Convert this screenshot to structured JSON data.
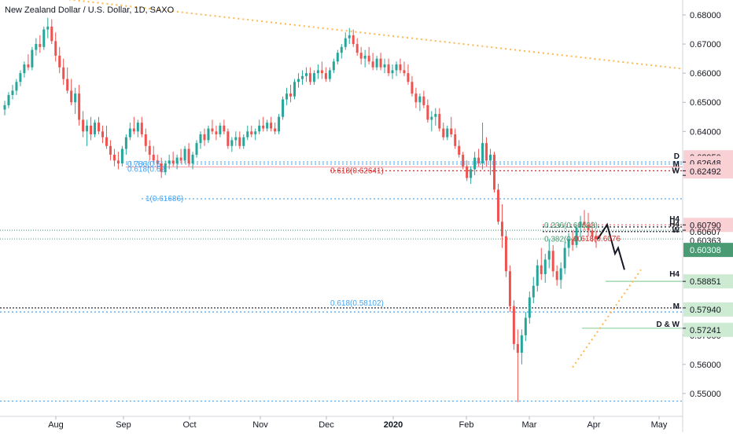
{
  "header": {
    "title": "New Zealand Dollar / U.S. Dollar, 1D, SAXO"
  },
  "chart_data": {
    "type": "candlestick",
    "symbol": "NZDUSD",
    "interval": "1D",
    "source": "SAXO",
    "x_ticks": [
      "Aug",
      "Sep",
      "Oct",
      "Nov",
      "Dec",
      "2020",
      "Feb",
      "Mar",
      "Apr",
      "May"
    ],
    "y_ticks": [
      "0.68000",
      "0.67000",
      "0.66000",
      "0.65000",
      "0.64000",
      "0.57000",
      "0.56000",
      "0.55000"
    ],
    "ylim": [
      0.546,
      0.685
    ],
    "price_labels": [
      {
        "value": "0.62950",
        "highlight": "#f9d0d4"
      },
      {
        "value": "0.62648",
        "highlight": "#f9d0d4"
      },
      {
        "value": "0.62492",
        "highlight": "#f9d0d4"
      },
      {
        "value": "0.60790",
        "highlight": "#f9d0d4"
      },
      {
        "value": "0.60607",
        "highlight": "none"
      },
      {
        "value": "0.60363",
        "highlight": "none"
      },
      {
        "value": "0.60308",
        "highlight": "#4a9b74"
      },
      {
        "value": "0.58851",
        "highlight": "#cdebd3"
      },
      {
        "value": "0.57940",
        "highlight": "#cdebd3"
      },
      {
        "value": "0.57241",
        "highlight": "#cdebd3"
      }
    ],
    "level_tags": [
      "D",
      "M",
      "W",
      "H4",
      "H4",
      "W",
      "H4",
      "M",
      "D & W"
    ],
    "fib_labels": [
      {
        "text": "0.618(0.62641)",
        "color": "#d32f2f"
      },
      {
        "text": "1(0.61686)",
        "color": "#42a5f5"
      },
      {
        "text": "0.618(0.58102)",
        "color": "#42a5f5"
      },
      {
        "text": "0.236(0.60633)",
        "color": "#4a9b74"
      },
      {
        "text": "0.382(0.60",
        "color": "#4a9b74"
      },
      {
        "text": "0.786(0.6",
        "color": "#42a5f5"
      },
      {
        "text": "0.618(0.62",
        "color": "#42a5f5"
      },
      {
        "text": "0.618(0.6076",
        "color": "#d32f2f"
      }
    ],
    "colors": {
      "up": "#26a69a",
      "down": "#ef5350",
      "wick": "#5a5a5a",
      "current_price": "#4a9b74",
      "trendline": "#ffb74d",
      "fib_blue": "#42a5f5",
      "fib_red": "#d32f2f"
    },
    "candles": [
      [
        0.6475,
        0.6505,
        0.6455,
        0.649
      ],
      [
        0.649,
        0.6535,
        0.648,
        0.6525
      ],
      [
        0.6525,
        0.656,
        0.651,
        0.654
      ],
      [
        0.654,
        0.658,
        0.6525,
        0.657
      ],
      [
        0.657,
        0.661,
        0.6555,
        0.66
      ],
      [
        0.66,
        0.664,
        0.6585,
        0.663
      ],
      [
        0.663,
        0.6665,
        0.661,
        0.662
      ],
      [
        0.662,
        0.669,
        0.661,
        0.668
      ],
      [
        0.668,
        0.672,
        0.666,
        0.67
      ],
      [
        0.67,
        0.673,
        0.667,
        0.669
      ],
      [
        0.669,
        0.676,
        0.668,
        0.675
      ],
      [
        0.675,
        0.679,
        0.672,
        0.676
      ],
      [
        0.676,
        0.6785,
        0.67,
        0.671
      ],
      [
        0.671,
        0.674,
        0.664,
        0.666
      ],
      [
        0.666,
        0.669,
        0.66,
        0.662
      ],
      [
        0.662,
        0.665,
        0.656,
        0.658
      ],
      [
        0.658,
        0.662,
        0.653,
        0.654
      ],
      [
        0.654,
        0.658,
        0.649,
        0.65
      ],
      [
        0.65,
        0.655,
        0.646,
        0.653
      ],
      [
        0.653,
        0.656,
        0.642,
        0.644
      ],
      [
        0.644,
        0.647,
        0.638,
        0.64
      ],
      [
        0.64,
        0.644,
        0.635,
        0.642
      ],
      [
        0.642,
        0.645,
        0.637,
        0.639
      ],
      [
        0.639,
        0.644,
        0.638,
        0.643
      ],
      [
        0.643,
        0.645,
        0.639,
        0.64
      ],
      [
        0.64,
        0.642,
        0.636,
        0.638
      ],
      [
        0.638,
        0.642,
        0.634,
        0.635
      ],
      [
        0.635,
        0.637,
        0.63,
        0.632
      ],
      [
        0.632,
        0.634,
        0.628,
        0.63
      ],
      [
        0.63,
        0.633,
        0.627,
        0.629
      ],
      [
        0.629,
        0.635,
        0.628,
        0.634
      ],
      [
        0.634,
        0.639,
        0.632,
        0.638
      ],
      [
        0.638,
        0.643,
        0.637,
        0.641
      ],
      [
        0.641,
        0.645,
        0.639,
        0.64
      ],
      [
        0.64,
        0.644,
        0.638,
        0.643
      ],
      [
        0.643,
        0.645,
        0.638,
        0.639
      ],
      [
        0.639,
        0.641,
        0.633,
        0.635
      ],
      [
        0.635,
        0.637,
        0.63,
        0.632
      ],
      [
        0.632,
        0.635,
        0.629,
        0.63
      ],
      [
        0.63,
        0.632,
        0.627,
        0.629
      ],
      [
        0.629,
        0.631,
        0.624,
        0.626
      ],
      [
        0.626,
        0.63,
        0.625,
        0.629
      ],
      [
        0.629,
        0.632,
        0.627,
        0.63
      ],
      [
        0.63,
        0.633,
        0.628,
        0.629
      ],
      [
        0.629,
        0.632,
        0.627,
        0.631
      ],
      [
        0.631,
        0.634,
        0.629,
        0.63
      ],
      [
        0.63,
        0.635,
        0.629,
        0.634
      ],
      [
        0.634,
        0.636,
        0.628,
        0.629
      ],
      [
        0.629,
        0.633,
        0.627,
        0.632
      ],
      [
        0.632,
        0.637,
        0.631,
        0.636
      ],
      [
        0.636,
        0.64,
        0.634,
        0.639
      ],
      [
        0.639,
        0.641,
        0.635,
        0.637
      ],
      [
        0.637,
        0.642,
        0.636,
        0.641
      ],
      [
        0.641,
        0.644,
        0.639,
        0.64
      ],
      [
        0.64,
        0.642,
        0.637,
        0.639
      ],
      [
        0.639,
        0.643,
        0.638,
        0.642
      ],
      [
        0.642,
        0.644,
        0.639,
        0.64
      ],
      [
        0.64,
        0.641,
        0.634,
        0.635
      ],
      [
        0.635,
        0.638,
        0.633,
        0.637
      ],
      [
        0.637,
        0.64,
        0.635,
        0.638
      ],
      [
        0.638,
        0.64,
        0.634,
        0.635
      ],
      [
        0.635,
        0.639,
        0.634,
        0.638
      ],
      [
        0.638,
        0.642,
        0.637,
        0.64
      ],
      [
        0.64,
        0.642,
        0.638,
        0.639
      ],
      [
        0.639,
        0.641,
        0.637,
        0.64
      ],
      [
        0.64,
        0.644,
        0.639,
        0.642
      ],
      [
        0.642,
        0.645,
        0.64,
        0.641
      ],
      [
        0.641,
        0.644,
        0.64,
        0.643
      ],
      [
        0.643,
        0.645,
        0.64,
        0.641
      ],
      [
        0.641,
        0.643,
        0.639,
        0.64
      ],
      [
        0.64,
        0.646,
        0.639,
        0.645
      ],
      [
        0.645,
        0.652,
        0.644,
        0.651
      ],
      [
        0.651,
        0.655,
        0.649,
        0.653
      ],
      [
        0.653,
        0.656,
        0.65,
        0.652
      ],
      [
        0.652,
        0.658,
        0.651,
        0.657
      ],
      [
        0.657,
        0.66,
        0.655,
        0.658
      ],
      [
        0.658,
        0.661,
        0.656,
        0.659
      ],
      [
        0.659,
        0.662,
        0.657,
        0.66
      ],
      [
        0.66,
        0.662,
        0.656,
        0.657
      ],
      [
        0.657,
        0.661,
        0.656,
        0.66
      ],
      [
        0.66,
        0.663,
        0.658,
        0.661
      ],
      [
        0.661,
        0.664,
        0.658,
        0.66
      ],
      [
        0.66,
        0.662,
        0.657,
        0.658
      ],
      [
        0.658,
        0.662,
        0.657,
        0.661
      ],
      [
        0.661,
        0.665,
        0.66,
        0.664
      ],
      [
        0.664,
        0.668,
        0.663,
        0.667
      ],
      [
        0.667,
        0.67,
        0.665,
        0.669
      ],
      [
        0.669,
        0.674,
        0.668,
        0.672
      ],
      [
        0.672,
        0.6755,
        0.67,
        0.673
      ],
      [
        0.673,
        0.675,
        0.669,
        0.67
      ],
      [
        0.67,
        0.672,
        0.666,
        0.667
      ],
      [
        0.667,
        0.669,
        0.663,
        0.665
      ],
      [
        0.665,
        0.668,
        0.662,
        0.666
      ],
      [
        0.666,
        0.669,
        0.663,
        0.664
      ],
      [
        0.664,
        0.667,
        0.661,
        0.662
      ],
      [
        0.662,
        0.666,
        0.661,
        0.665
      ],
      [
        0.665,
        0.667,
        0.661,
        0.662
      ],
      [
        0.662,
        0.665,
        0.66,
        0.663
      ],
      [
        0.663,
        0.665,
        0.659,
        0.66
      ],
      [
        0.66,
        0.663,
        0.658,
        0.661
      ],
      [
        0.661,
        0.664,
        0.659,
        0.663
      ],
      [
        0.663,
        0.665,
        0.66,
        0.661
      ],
      [
        0.661,
        0.664,
        0.659,
        0.66
      ],
      [
        0.66,
        0.663,
        0.656,
        0.657
      ],
      [
        0.657,
        0.659,
        0.652,
        0.653
      ],
      [
        0.653,
        0.655,
        0.648,
        0.65
      ],
      [
        0.65,
        0.653,
        0.647,
        0.652
      ],
      [
        0.652,
        0.654,
        0.648,
        0.649
      ],
      [
        0.649,
        0.651,
        0.643,
        0.644
      ],
      [
        0.644,
        0.647,
        0.64,
        0.645
      ],
      [
        0.645,
        0.648,
        0.642,
        0.646
      ],
      [
        0.646,
        0.648,
        0.64,
        0.641
      ],
      [
        0.641,
        0.643,
        0.637,
        0.638
      ],
      [
        0.638,
        0.642,
        0.637,
        0.641
      ],
      [
        0.641,
        0.645,
        0.638,
        0.639
      ],
      [
        0.639,
        0.641,
        0.634,
        0.635
      ],
      [
        0.635,
        0.637,
        0.631,
        0.632
      ],
      [
        0.632,
        0.633,
        0.627,
        0.628
      ],
      [
        0.628,
        0.63,
        0.623,
        0.624
      ],
      [
        0.624,
        0.628,
        0.622,
        0.627
      ],
      [
        0.627,
        0.633,
        0.625,
        0.631
      ],
      [
        0.631,
        0.634,
        0.628,
        0.629
      ],
      [
        0.629,
        0.643,
        0.627,
        0.636
      ],
      [
        0.636,
        0.638,
        0.628,
        0.63
      ],
      [
        0.63,
        0.634,
        0.625,
        0.632
      ],
      [
        0.632,
        0.633,
        0.619,
        0.62
      ],
      [
        0.62,
        0.622,
        0.608,
        0.609
      ],
      [
        0.609,
        0.615,
        0.6,
        0.604
      ],
      [
        0.604,
        0.606,
        0.59,
        0.592
      ],
      [
        0.592,
        0.594,
        0.578,
        0.58
      ],
      [
        0.58,
        0.582,
        0.565,
        0.567
      ],
      [
        0.567,
        0.572,
        0.547,
        0.564
      ],
      [
        0.564,
        0.572,
        0.56,
        0.57
      ],
      [
        0.57,
        0.578,
        0.568,
        0.576
      ],
      [
        0.576,
        0.585,
        0.574,
        0.583
      ],
      [
        0.583,
        0.59,
        0.581,
        0.587
      ],
      [
        0.587,
        0.596,
        0.585,
        0.594
      ],
      [
        0.594,
        0.6,
        0.589,
        0.591
      ],
      [
        0.591,
        0.598,
        0.588,
        0.596
      ],
      [
        0.596,
        0.603,
        0.593,
        0.599
      ],
      [
        0.599,
        0.601,
        0.59,
        0.592
      ],
      [
        0.592,
        0.594,
        0.587,
        0.589
      ],
      [
        0.589,
        0.595,
        0.586,
        0.593
      ],
      [
        0.593,
        0.602,
        0.591,
        0.6
      ],
      [
        0.6,
        0.605,
        0.597,
        0.603
      ],
      [
        0.603,
        0.606,
        0.599,
        0.601
      ],
      [
        0.601,
        0.608,
        0.6,
        0.607
      ],
      [
        0.607,
        0.611,
        0.604,
        0.609
      ],
      [
        0.609,
        0.613,
        0.606,
        0.608
      ],
      [
        0.608,
        0.612,
        0.604,
        0.606
      ],
      [
        0.606,
        0.609,
        0.602,
        0.604
      ],
      [
        0.604,
        0.606,
        0.6,
        0.6031
      ]
    ]
  }
}
